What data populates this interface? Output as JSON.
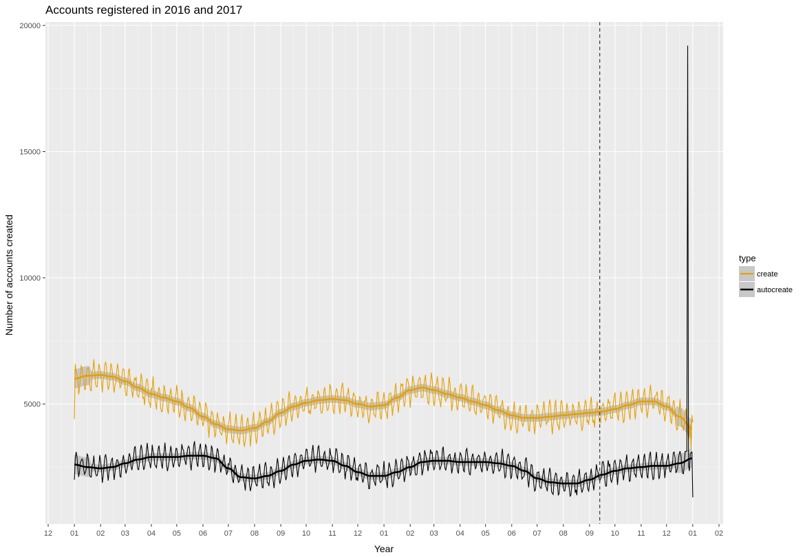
{
  "chart_data": {
    "type": "line",
    "title": "Accounts registered in 2016 and 2017",
    "xlabel": "Year",
    "ylabel": "Number of accounts created",
    "x_tick_labels": [
      "12",
      "01",
      "02",
      "03",
      "04",
      "05",
      "06",
      "07",
      "08",
      "09",
      "10",
      "11",
      "12",
      "01",
      "02",
      "03",
      "04",
      "05",
      "06",
      "07",
      "08",
      "09",
      "10",
      "11",
      "12",
      "01",
      "02"
    ],
    "x_range": [
      "2015-12-01",
      "2018-02-01"
    ],
    "y_ticks": [
      5000,
      10000,
      15000,
      20000
    ],
    "y_tick_labels": [
      "5000",
      "10000",
      "15000",
      "20000"
    ],
    "ylim": [
      0,
      20000
    ],
    "grid": true,
    "legend": {
      "title": "type",
      "position": "right",
      "entries": [
        {
          "label": "create",
          "color": "#E69F00"
        },
        {
          "label": "autocreate",
          "color": "#000000"
        }
      ]
    },
    "vline": {
      "x": "2017-09-13",
      "style": "dashed"
    },
    "series": [
      {
        "name": "create",
        "color": "#E69F00",
        "daily_weekly_swing": 500,
        "x": [
          "2016-01-01",
          "2016-01-16",
          "2016-02-01",
          "2016-02-15",
          "2016-03-01",
          "2016-03-16",
          "2016-04-01",
          "2016-04-16",
          "2016-05-01",
          "2016-05-16",
          "2016-06-01",
          "2016-06-16",
          "2016-07-01",
          "2016-07-16",
          "2016-08-01",
          "2016-08-16",
          "2016-09-01",
          "2016-09-16",
          "2016-10-01",
          "2016-10-16",
          "2016-11-01",
          "2016-11-16",
          "2016-12-01",
          "2016-12-16",
          "2017-01-01",
          "2017-01-16",
          "2017-02-01",
          "2017-02-15",
          "2017-03-01",
          "2017-03-16",
          "2017-04-01",
          "2017-04-16",
          "2017-05-01",
          "2017-05-16",
          "2017-06-01",
          "2017-06-16",
          "2017-07-01",
          "2017-07-16",
          "2017-08-01",
          "2017-08-16",
          "2017-09-01",
          "2017-09-16",
          "2017-10-01",
          "2017-10-16",
          "2017-11-01",
          "2017-11-16",
          "2017-12-01",
          "2017-12-16",
          "2018-01-01"
        ],
        "smooth": [
          6000,
          6120,
          6150,
          6080,
          5900,
          5650,
          5400,
          5250,
          5100,
          4850,
          4500,
          4200,
          4000,
          3950,
          4050,
          4300,
          4650,
          4900,
          5050,
          5150,
          5200,
          5150,
          5000,
          4900,
          4950,
          5250,
          5550,
          5650,
          5550,
          5400,
          5250,
          5100,
          4950,
          4750,
          4550,
          4450,
          4450,
          4500,
          4550,
          4600,
          4650,
          4700,
          4800,
          4950,
          5100,
          5100,
          4900,
          4500,
          4000
        ],
        "end_spike_low": 3200
      },
      {
        "name": "autocreate",
        "color": "#000000",
        "daily_weekly_swing": 420,
        "x": [
          "2016-01-01",
          "2016-01-16",
          "2016-02-01",
          "2016-02-15",
          "2016-03-01",
          "2016-03-16",
          "2016-04-01",
          "2016-04-16",
          "2016-05-01",
          "2016-05-16",
          "2016-06-01",
          "2016-06-16",
          "2016-07-01",
          "2016-07-16",
          "2016-08-01",
          "2016-08-16",
          "2016-09-01",
          "2016-09-16",
          "2016-10-01",
          "2016-10-16",
          "2016-11-01",
          "2016-11-16",
          "2016-12-01",
          "2016-12-16",
          "2017-01-01",
          "2017-01-16",
          "2017-02-01",
          "2017-02-15",
          "2017-03-01",
          "2017-03-16",
          "2017-04-01",
          "2017-04-16",
          "2017-05-01",
          "2017-05-16",
          "2017-06-01",
          "2017-06-16",
          "2017-07-01",
          "2017-07-16",
          "2017-08-01",
          "2017-08-16",
          "2017-09-01",
          "2017-09-16",
          "2017-10-01",
          "2017-10-16",
          "2017-11-01",
          "2017-11-16",
          "2017-12-01",
          "2017-12-16",
          "2018-01-01"
        ],
        "smooth": [
          2600,
          2500,
          2450,
          2500,
          2650,
          2800,
          2900,
          2900,
          2900,
          2950,
          2950,
          2850,
          2450,
          2100,
          2050,
          2150,
          2350,
          2600,
          2750,
          2800,
          2750,
          2550,
          2300,
          2150,
          2150,
          2300,
          2500,
          2700,
          2750,
          2750,
          2700,
          2700,
          2700,
          2650,
          2550,
          2350,
          2050,
          1900,
          1850,
          1850,
          2000,
          2200,
          2350,
          2450,
          2500,
          2550,
          2550,
          2650,
          2850
        ],
        "spike": {
          "x": "2017-12-26",
          "value": 19200
        },
        "end_value": 1300
      }
    ]
  }
}
